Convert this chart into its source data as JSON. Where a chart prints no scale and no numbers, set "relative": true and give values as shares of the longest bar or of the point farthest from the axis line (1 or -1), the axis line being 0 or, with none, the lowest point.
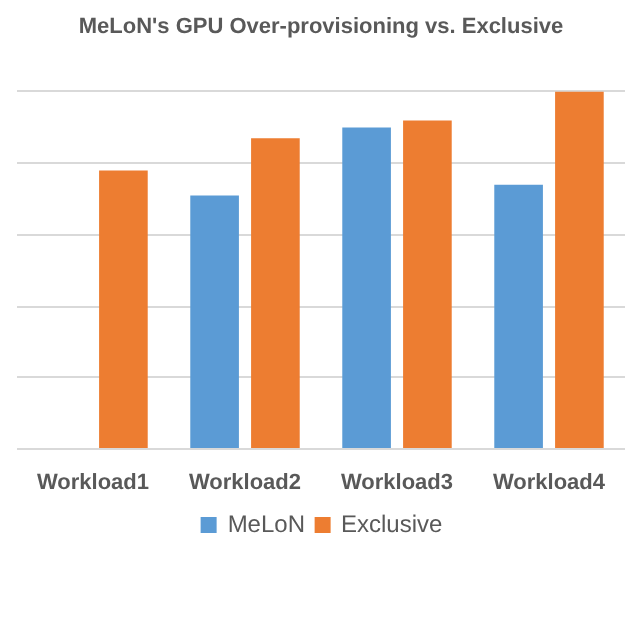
{
  "chart_data": {
    "type": "bar",
    "title": "MeLoN's GPU Over-provisioning vs. Exclusive",
    "relative": true,
    "categories": [
      "Workload1",
      "Workload2",
      "Workload3",
      "Workload4"
    ],
    "series": [
      {
        "name": "MeLoN",
        "color": "#5b9bd5",
        "values": [
          null,
          0.71,
          0.9,
          0.74
        ]
      },
      {
        "name": "Exclusive",
        "color": "#ed7d31",
        "values": [
          0.78,
          0.87,
          0.92,
          1
        ]
      }
    ],
    "grid": "y",
    "legend": "bottom"
  }
}
